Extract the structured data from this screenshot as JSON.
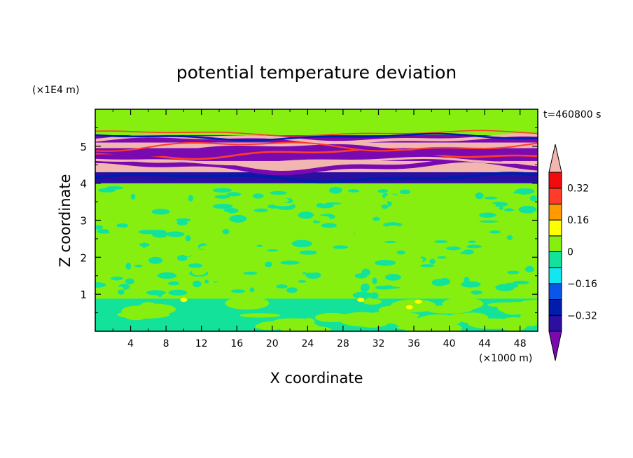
{
  "chart_data": {
    "type": "heatmap",
    "title": "potential temperature deviation",
    "time_label": "t=460800 s",
    "xlabel": "X coordinate",
    "x_unit": "(×1000 m)",
    "ylabel": "Z coordinate",
    "y_unit": "(×1E4 m)",
    "xlim": [
      0,
      50
    ],
    "ylim": [
      0,
      6
    ],
    "x_ticks": [
      "4",
      "8",
      "12",
      "16",
      "20",
      "24",
      "28",
      "32",
      "36",
      "40",
      "44",
      "48"
    ],
    "y_ticks": [
      "1",
      "2",
      "3",
      "4",
      "5"
    ],
    "colorbar": {
      "levels": [
        -0.48,
        -0.4,
        -0.32,
        -0.24,
        -0.16,
        -0.08,
        0,
        0.08,
        0.16,
        0.24,
        0.32,
        0.4
      ],
      "colors": [
        "#7a0ab0",
        "#2b0fa0",
        "#001caa",
        "#0a56e8",
        "#12e6ef",
        "#13e39a",
        "#86ef10",
        "#ffff00",
        "#ff9a00",
        "#ff3b2b",
        "#f30a0a",
        "#f2b6b0"
      ],
      "tick_labels": [
        "0.32",
        "0.16",
        "0",
        "−0.16",
        "−0.32"
      ],
      "tick_values": [
        0.32,
        0.16,
        0,
        -0.16,
        -0.32
      ]
    },
    "bands": [
      {
        "z0": 0,
        "z1": 0.88,
        "value": -0.04,
        "desc": "lower layer slightly negative"
      },
      {
        "z0": 0.88,
        "z1": 4.0,
        "value": 0.02,
        "desc": "patchy near zero"
      },
      {
        "z0": 4.0,
        "z1": 4.3,
        "value": -0.4
      },
      {
        "z0": 4.3,
        "z1": 4.6,
        "value": 0.45
      },
      {
        "z0": 4.6,
        "z1": 4.95,
        "value": -0.45
      },
      {
        "z0": 4.95,
        "z1": 5.1,
        "value": 0.45
      },
      {
        "z0": 5.1,
        "z1": 5.3,
        "value": -0.45
      },
      {
        "z0": 5.3,
        "z1": 6.0,
        "value": 0.02
      }
    ]
  }
}
